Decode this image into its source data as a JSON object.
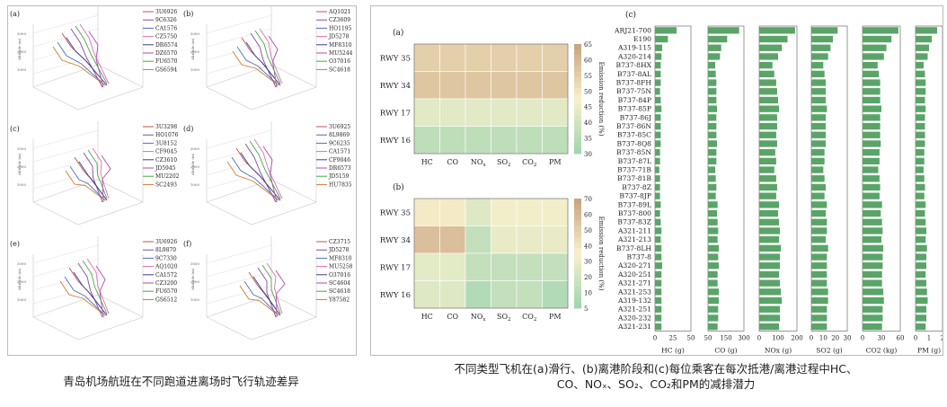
{
  "left_figure": {
    "panels": [
      {
        "label": "(a)",
        "flights": [
          "3U6926",
          "9C6326",
          "CA1576",
          "CZ5750",
          "DR6574",
          "DZ6570",
          "FU6570",
          "GS6594"
        ]
      },
      {
        "label": "(b)",
        "flights": [
          "AQ1021",
          "CZ3609",
          "HO1195",
          "JD5278",
          "MF8310",
          "MU5244",
          "O37016",
          "SC4618"
        ]
      },
      {
        "label": "(c)",
        "flights": [
          "3U3298",
          "HO1076",
          "3U8152",
          "CF9045",
          "CZ3610",
          "JD5945",
          "MU2202",
          "SC2493"
        ]
      },
      {
        "label": "(d)",
        "flights": [
          "3U6925",
          "8L9869",
          "9C6235",
          "CA1571",
          "CF9046",
          "DR6573",
          "JD5159",
          "HU7835"
        ]
      },
      {
        "label": "(e)",
        "flights": [
          "3U6926",
          "8L9870",
          "9C7330",
          "AQ1020",
          "CA1572",
          "CZ3200",
          "FU6570",
          "GS6512"
        ]
      },
      {
        "label": "(f)",
        "flights": [
          "CZ3715",
          "JD5278",
          "MF8310",
          "MU5258",
          "O37016",
          "SC4604",
          "SC4618",
          "Y87582"
        ]
      }
    ],
    "axis_label": "Altitude (m)",
    "caption": "青岛机场航班在不同跑道进离场时飞行轨迹差异"
  },
  "chart_data": [
    {
      "type": "heatmap",
      "title": "(a)",
      "rows": [
        "RWY 35",
        "RWY 34",
        "RWY 17",
        "RWY 16"
      ],
      "columns": [
        "HC",
        "CO",
        "NOx",
        "SO2",
        "CO2",
        "PM"
      ],
      "values": [
        [
          55,
          55,
          55,
          55,
          55,
          55
        ],
        [
          57,
          57,
          57,
          57,
          57,
          57
        ],
        [
          43,
          43,
          43,
          43,
          43,
          43
        ],
        [
          36,
          36,
          36,
          36,
          36,
          36
        ]
      ],
      "colorbar": {
        "label": "Emission reduction (%)",
        "ticks": [
          65,
          60,
          55,
          50,
          45,
          40,
          35,
          30
        ],
        "min": 30,
        "max": 65
      }
    },
    {
      "type": "heatmap",
      "title": "(b)",
      "rows": [
        "RWY 35",
        "RWY 34",
        "RWY 17",
        "RWY 16"
      ],
      "columns": [
        "HC",
        "CO",
        "NOx",
        "SO2",
        "CO2",
        "PM"
      ],
      "values": [
        [
          40,
          40,
          28,
          35,
          35,
          35
        ],
        [
          58,
          58,
          18,
          32,
          32,
          32
        ],
        [
          30,
          30,
          18,
          18,
          18,
          18
        ],
        [
          28,
          28,
          12,
          18,
          18,
          12
        ]
      ],
      "colorbar": {
        "label": "Emission reduction (%)",
        "ticks": [
          70,
          60,
          50,
          40,
          30,
          20,
          10,
          5
        ],
        "min": 5,
        "max": 70
      }
    },
    {
      "type": "bar",
      "title": "(c)",
      "categories": [
        "ARJ21-700",
        "E190",
        "A319-115",
        "A320-214",
        "B737-8HX",
        "B737-8AL",
        "B737-8FH",
        "B737-75N",
        "B737-84P",
        "B737-85P",
        "B737-86J",
        "B737-86N",
        "B737-85C",
        "B737-8Q8",
        "B737-85N",
        "B737-87L",
        "B737-71B",
        "B737-81B",
        "B737-8Z",
        "B737-8JP",
        "B737-89L",
        "B737-800",
        "B737-83Z",
        "A321-211",
        "A321-213",
        "B737-8LH",
        "B737-8",
        "A320-271",
        "A320-251",
        "A321-271",
        "A321-253",
        "A319-132",
        "A321-251",
        "A320-232",
        "A321-231"
      ],
      "series": [
        {
          "name": "HC (g)",
          "xlim": [
            0,
            50
          ],
          "ticks": [
            "0",
            "25",
            "50"
          ],
          "values": [
            30,
            18,
            10,
            9,
            8,
            8,
            8,
            7,
            8,
            9,
            8,
            8,
            8,
            8,
            7,
            7,
            6,
            7,
            7,
            7,
            8,
            7,
            8,
            9,
            8,
            9,
            9,
            10,
            9,
            9,
            9,
            9,
            9,
            9,
            9
          ]
        },
        {
          "name": "CO (g)",
          "xlim": [
            0,
            300
          ],
          "ticks": [
            "50",
            "150",
            "300"
          ],
          "values": [
            260,
            160,
            110,
            100,
            60,
            65,
            70,
            70,
            70,
            75,
            70,
            70,
            70,
            75,
            70,
            70,
            60,
            65,
            70,
            65,
            80,
            75,
            80,
            85,
            80,
            90,
            85,
            90,
            80,
            80,
            90,
            90,
            85,
            85,
            80
          ]
        },
        {
          "name": "NOx (g)",
          "xlim": [
            0,
            200
          ],
          "ticks": [
            "0",
            "100",
            "200"
          ],
          "values": [
            190,
            150,
            120,
            100,
            70,
            80,
            90,
            95,
            100,
            105,
            95,
            95,
            90,
            95,
            85,
            90,
            80,
            90,
            95,
            90,
            105,
            100,
            105,
            110,
            105,
            115,
            110,
            110,
            105,
            110,
            115,
            120,
            110,
            110,
            105
          ]
        },
        {
          "name": "SO2 (g)",
          "xlim": [
            0,
            30
          ],
          "ticks": [
            "0",
            "10",
            "20",
            "30"
          ],
          "values": [
            22,
            18,
            16,
            14,
            10,
            11,
            12,
            12,
            12,
            13,
            12,
            12,
            12,
            12,
            11,
            11,
            10,
            11,
            12,
            11,
            13,
            12,
            13,
            13,
            12,
            14,
            13,
            13,
            13,
            13,
            14,
            14,
            13,
            13,
            13
          ]
        },
        {
          "name": "CO2 (kg)",
          "xlim": [
            0,
            60
          ],
          "ticks": [
            "0",
            "30",
            "60"
          ],
          "values": [
            57,
            46,
            38,
            34,
            24,
            26,
            28,
            28,
            28,
            30,
            28,
            28,
            28,
            29,
            27,
            27,
            25,
            27,
            28,
            27,
            31,
            29,
            31,
            32,
            30,
            33,
            32,
            32,
            31,
            31,
            33,
            34,
            32,
            32,
            31
          ]
        },
        {
          "name": "PM (g)",
          "xlim": [
            0,
            2
          ],
          "ticks": [
            "0",
            "1",
            "2"
          ],
          "values": [
            1.6,
            1.2,
            1.0,
            0.9,
            0.6,
            0.7,
            0.75,
            0.75,
            0.7,
            0.75,
            0.7,
            0.7,
            0.7,
            0.7,
            0.65,
            0.65,
            0.6,
            0.65,
            0.7,
            0.65,
            0.75,
            0.7,
            0.75,
            0.8,
            0.75,
            0.85,
            0.8,
            0.8,
            0.75,
            0.8,
            0.85,
            0.9,
            0.8,
            0.8,
            0.75
          ]
        }
      ]
    }
  ],
  "right_caption": {
    "line1": "不同类型飞机在(a)滑行、(b)离港阶段和(c)每位乘客在每次抵港/离港过程中HC、",
    "line2": "CO、NOₓ、SO₂、CO₂和PM的减排潜力"
  },
  "colors": {
    "bar": "#5aa468",
    "heat_high": "#c8a27c",
    "heat_mid": "#f8f0cc",
    "heat_low": "#9fd4b0"
  }
}
